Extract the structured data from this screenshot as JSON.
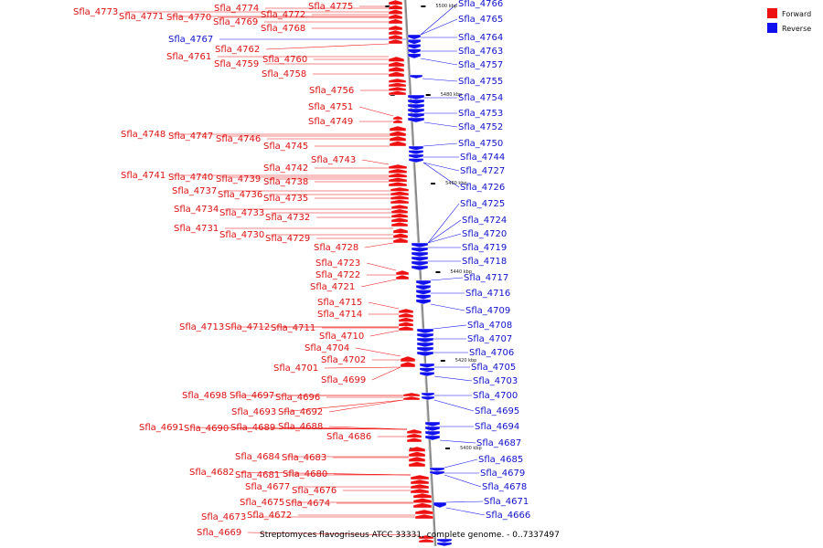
{
  "caption": "Streptomyces flavogriseus ATCC 33331, complete genome. - 0..7337497",
  "legend": [
    {
      "label": "Forward",
      "color": "#ee1111"
    },
    {
      "label": "Reverse",
      "color": "#1111ee"
    }
  ],
  "colors": {
    "forward": "#ee1111",
    "reverse": "#1111ee",
    "backbone": "#888888"
  },
  "ticks": [
    "5500 kbp",
    "5480 kbp",
    "5460 kbp",
    "5440 kbp",
    "5420 kbp",
    "5400 kbp"
  ],
  "forward_genes": [
    "Sfla_4773",
    "Sfla_4771",
    "Sfla_4770",
    "Sfla_4774",
    "Sfla_4769",
    "Sfla_4772",
    "Sfla_4775",
    "Sfla_4768",
    "Sfla_4762",
    "Sfla_4761",
    "Sfla_4760",
    "Sfla_4759",
    "Sfla_4758",
    "Sfla_4756",
    "Sfla_4751",
    "Sfla_4749",
    "Sfla_4748",
    "Sfla_4747",
    "Sfla_4746",
    "Sfla_4745",
    "Sfla_4743",
    "Sfla_4742",
    "Sfla_4741",
    "Sfla_4740",
    "Sfla_4739",
    "Sfla_4738",
    "Sfla_4737",
    "Sfla_4736",
    "Sfla_4735",
    "Sfla_4734",
    "Sfla_4733",
    "Sfla_4732",
    "Sfla_4731",
    "Sfla_4730",
    "Sfla_4729",
    "Sfla_4728",
    "Sfla_4723",
    "Sfla_4722",
    "Sfla_4721",
    "Sfla_4715",
    "Sfla_4714",
    "Sfla_4713",
    "Sfla_4712",
    "Sfla_4711",
    "Sfla_4710",
    "Sfla_4704",
    "Sfla_4702",
    "Sfla_4701",
    "Sfla_4699",
    "Sfla_4698",
    "Sfla_4697",
    "Sfla_4696",
    "Sfla_4693",
    "Sfla_4692",
    "Sfla_4691",
    "Sfla_4690",
    "Sfla_4689",
    "Sfla_4688",
    "Sfla_4686",
    "Sfla_4684",
    "Sfla_4683",
    "Sfla_4682",
    "Sfla_4681",
    "Sfla_4680",
    "Sfla_4677",
    "Sfla_4676",
    "Sfla_4675",
    "Sfla_4674",
    "Sfla_4673",
    "Sfla_4672",
    "Sfla_4669"
  ],
  "reverse_genes": [
    "Sfla_4767",
    "Sfla_4766",
    "Sfla_4765",
    "Sfla_4764",
    "Sfla_4763",
    "Sfla_4757",
    "Sfla_4755",
    "Sfla_4754",
    "Sfla_4753",
    "Sfla_4752",
    "Sfla_4750",
    "Sfla_4744",
    "Sfla_4727",
    "Sfla_4726",
    "Sfla_4725",
    "Sfla_4724",
    "Sfla_4720",
    "Sfla_4719",
    "Sfla_4718",
    "Sfla_4717",
    "Sfla_4716",
    "Sfla_4709",
    "Sfla_4708",
    "Sfla_4707",
    "Sfla_4706",
    "Sfla_4705",
    "Sfla_4703",
    "Sfla_4700",
    "Sfla_4695",
    "Sfla_4694",
    "Sfla_4687",
    "Sfla_4685",
    "Sfla_4679",
    "Sfla_4678",
    "Sfla_4671",
    "Sfla_4666"
  ]
}
